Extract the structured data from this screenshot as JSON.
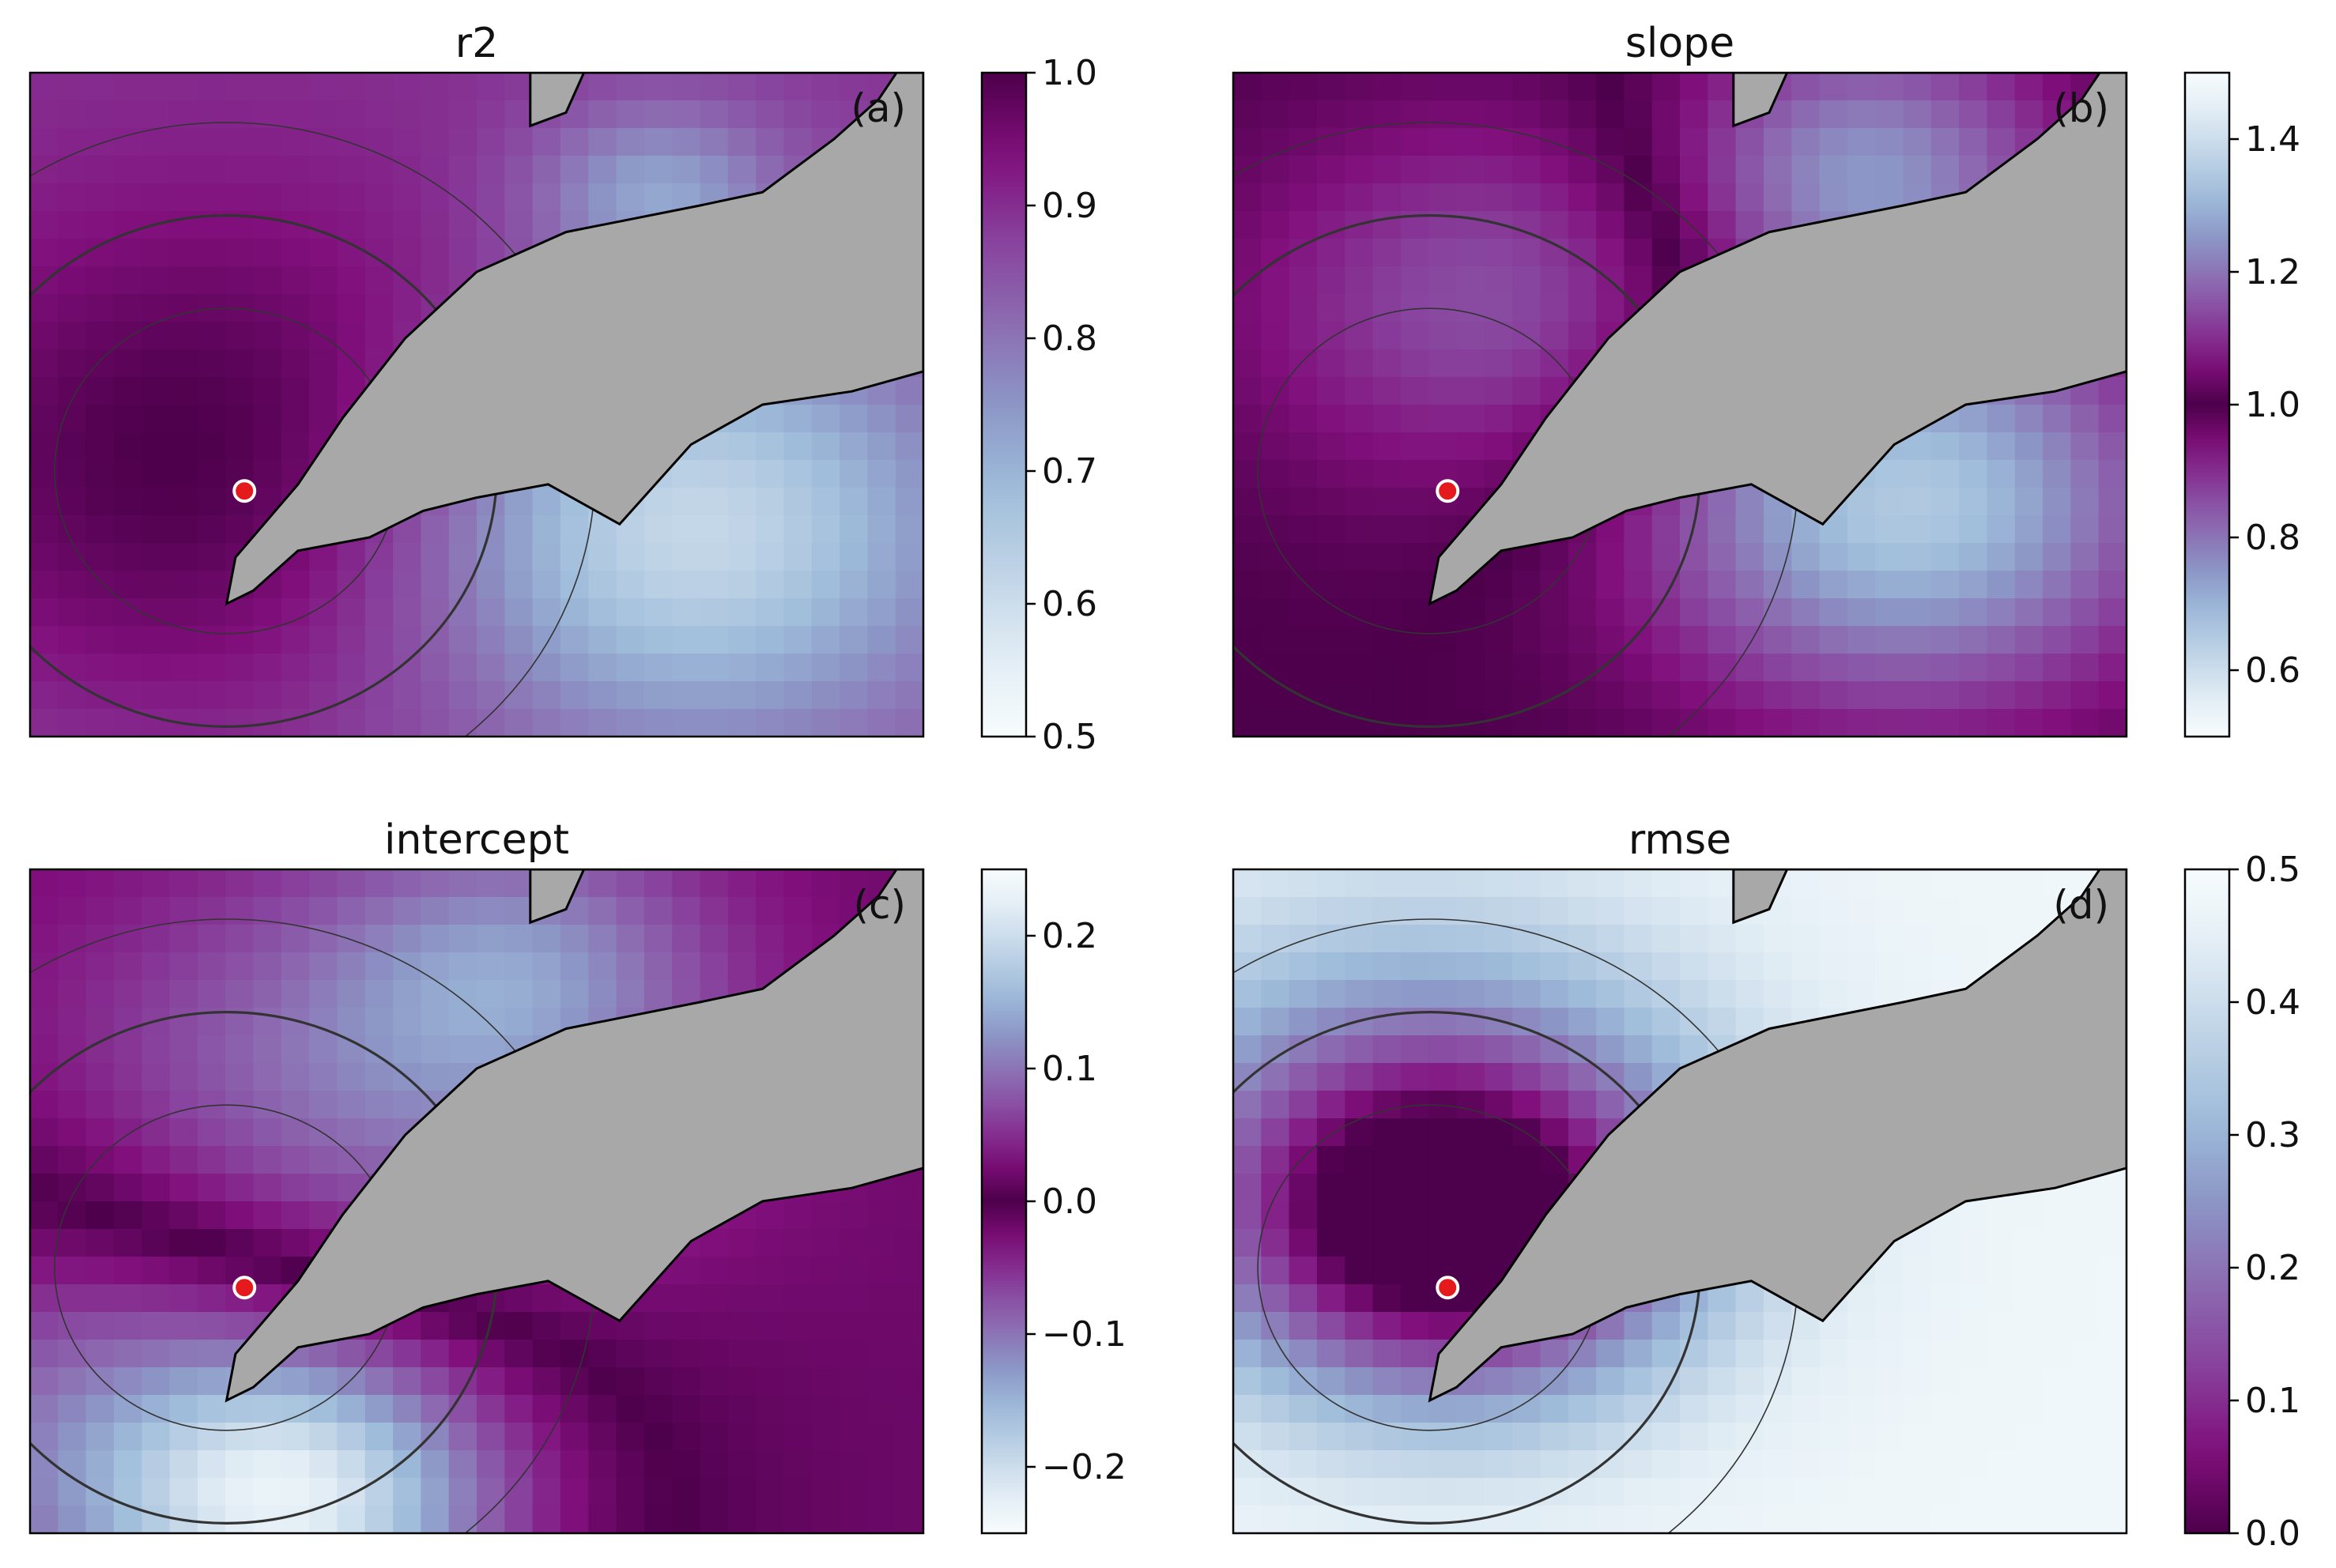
{
  "chart_data": [
    {
      "type": "heatmap",
      "title": "r2",
      "panel_label": "(a)",
      "colormap": "BuPu",
      "reversed": false,
      "vmin": 0.5,
      "vmax": 1.0,
      "ticks": [
        "0.5",
        "0.6",
        "0.7",
        "0.8",
        "0.9",
        "1.0"
      ],
      "tick_values": [
        0.5,
        0.6,
        0.7,
        0.8,
        0.9,
        1.0
      ],
      "field": {
        "base": 0.88,
        "low_regions": [
          [
            0.65,
            0.75,
            0.26
          ],
          [
            0.8,
            0.25,
            0.1
          ]
        ],
        "high_regions": [
          [
            0.22,
            0.55,
            0.25
          ]
        ]
      },
      "land_color": "#a8a8a8",
      "marker": {
        "color": "#e41a1c",
        "shape": "circle"
      }
    },
    {
      "type": "heatmap",
      "title": "slope",
      "panel_label": "(b)",
      "colormap": "BuPu diverging (white–purple–white)",
      "reversed": false,
      "vmin": 0.5,
      "vmax": 1.5,
      "ticks": [
        "0.6",
        "0.8",
        "1.0",
        "1.2",
        "1.4"
      ],
      "tick_values": [
        0.6,
        0.8,
        1.0,
        1.2,
        1.4
      ],
      "land_color": "#a8a8a8",
      "marker": {
        "color": "#e41a1c",
        "shape": "circle"
      }
    },
    {
      "type": "heatmap",
      "title": "intercept",
      "panel_label": "(c)",
      "colormap": "BuPu diverging (white–purple–white)",
      "reversed": false,
      "vmin": -0.25,
      "vmax": 0.25,
      "ticks": [
        "−0.2",
        "−0.1",
        "0.0",
        "0.1",
        "0.2"
      ],
      "tick_values": [
        -0.2,
        -0.1,
        0.0,
        0.1,
        0.2
      ],
      "land_color": "#a8a8a8",
      "marker": {
        "color": "#e41a1c",
        "shape": "circle"
      }
    },
    {
      "type": "heatmap",
      "title": "rmse",
      "panel_label": "(d)",
      "colormap": "BuPu",
      "reversed": true,
      "vmin": 0.0,
      "vmax": 0.5,
      "ticks": [
        "0.0",
        "0.1",
        "0.2",
        "0.3",
        "0.4",
        "0.5"
      ],
      "tick_values": [
        0.0,
        0.1,
        0.2,
        0.3,
        0.4,
        0.5
      ],
      "land_color": "#a8a8a8",
      "marker": {
        "color": "#e41a1c",
        "shape": "circle"
      }
    }
  ]
}
